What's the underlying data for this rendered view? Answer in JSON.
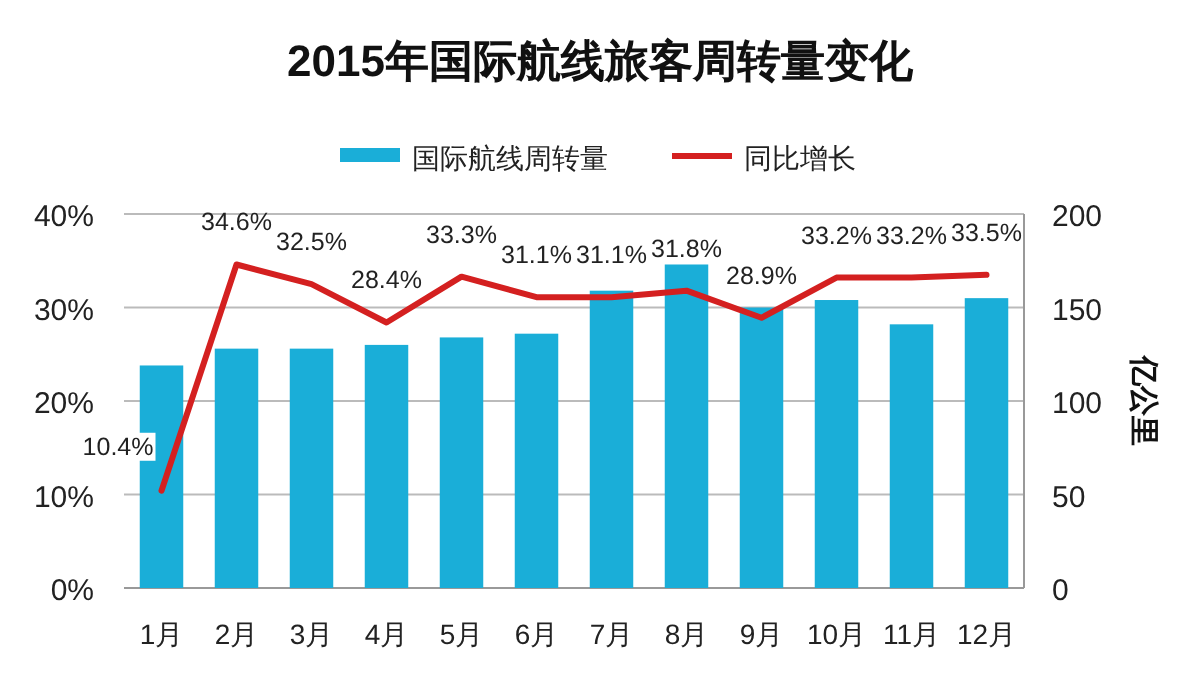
{
  "chart_data": {
    "type": "bar",
    "title": "2015年国际航线旅客周转量变化",
    "categories": [
      "1月",
      "2月",
      "3月",
      "4月",
      "5月",
      "6月",
      "7月",
      "8月",
      "9月",
      "10月",
      "11月",
      "12月"
    ],
    "series": [
      {
        "name": "国际航线周转量",
        "axis": "y2",
        "color": "#1aaed8",
        "values": [
          119,
          128,
          128,
          130,
          134,
          136,
          159,
          173,
          150,
          154,
          141,
          155
        ]
      },
      {
        "name": "同比增长",
        "type": "line",
        "axis": "y",
        "color": "#d42020",
        "values": [
          10.4,
          34.6,
          32.5,
          28.4,
          33.3,
          31.1,
          31.1,
          31.8,
          28.9,
          33.2,
          33.2,
          33.5
        ],
        "value_labels": [
          "10.4%",
          "34.6%",
          "32.5%",
          "28.4%",
          "33.3%",
          "31.1%",
          "31.1%",
          "31.8%",
          "28.9%",
          "33.2%",
          "33.2%",
          "33.5%"
        ]
      }
    ],
    "ylim": [
      0,
      40
    ],
    "yticks": [
      {
        "value": 0,
        "label": "0%"
      },
      {
        "value": 10,
        "label": "10%"
      },
      {
        "value": 20,
        "label": "20%"
      },
      {
        "value": 30,
        "label": "30%"
      },
      {
        "value": 40,
        "label": "40%"
      }
    ],
    "y2lim": [
      0,
      200
    ],
    "y2ticks": [
      0,
      50,
      100,
      150,
      200
    ],
    "y2label": "亿公里",
    "grid": "y",
    "legend": "top",
    "marker": "none",
    "line_style": "solid"
  }
}
